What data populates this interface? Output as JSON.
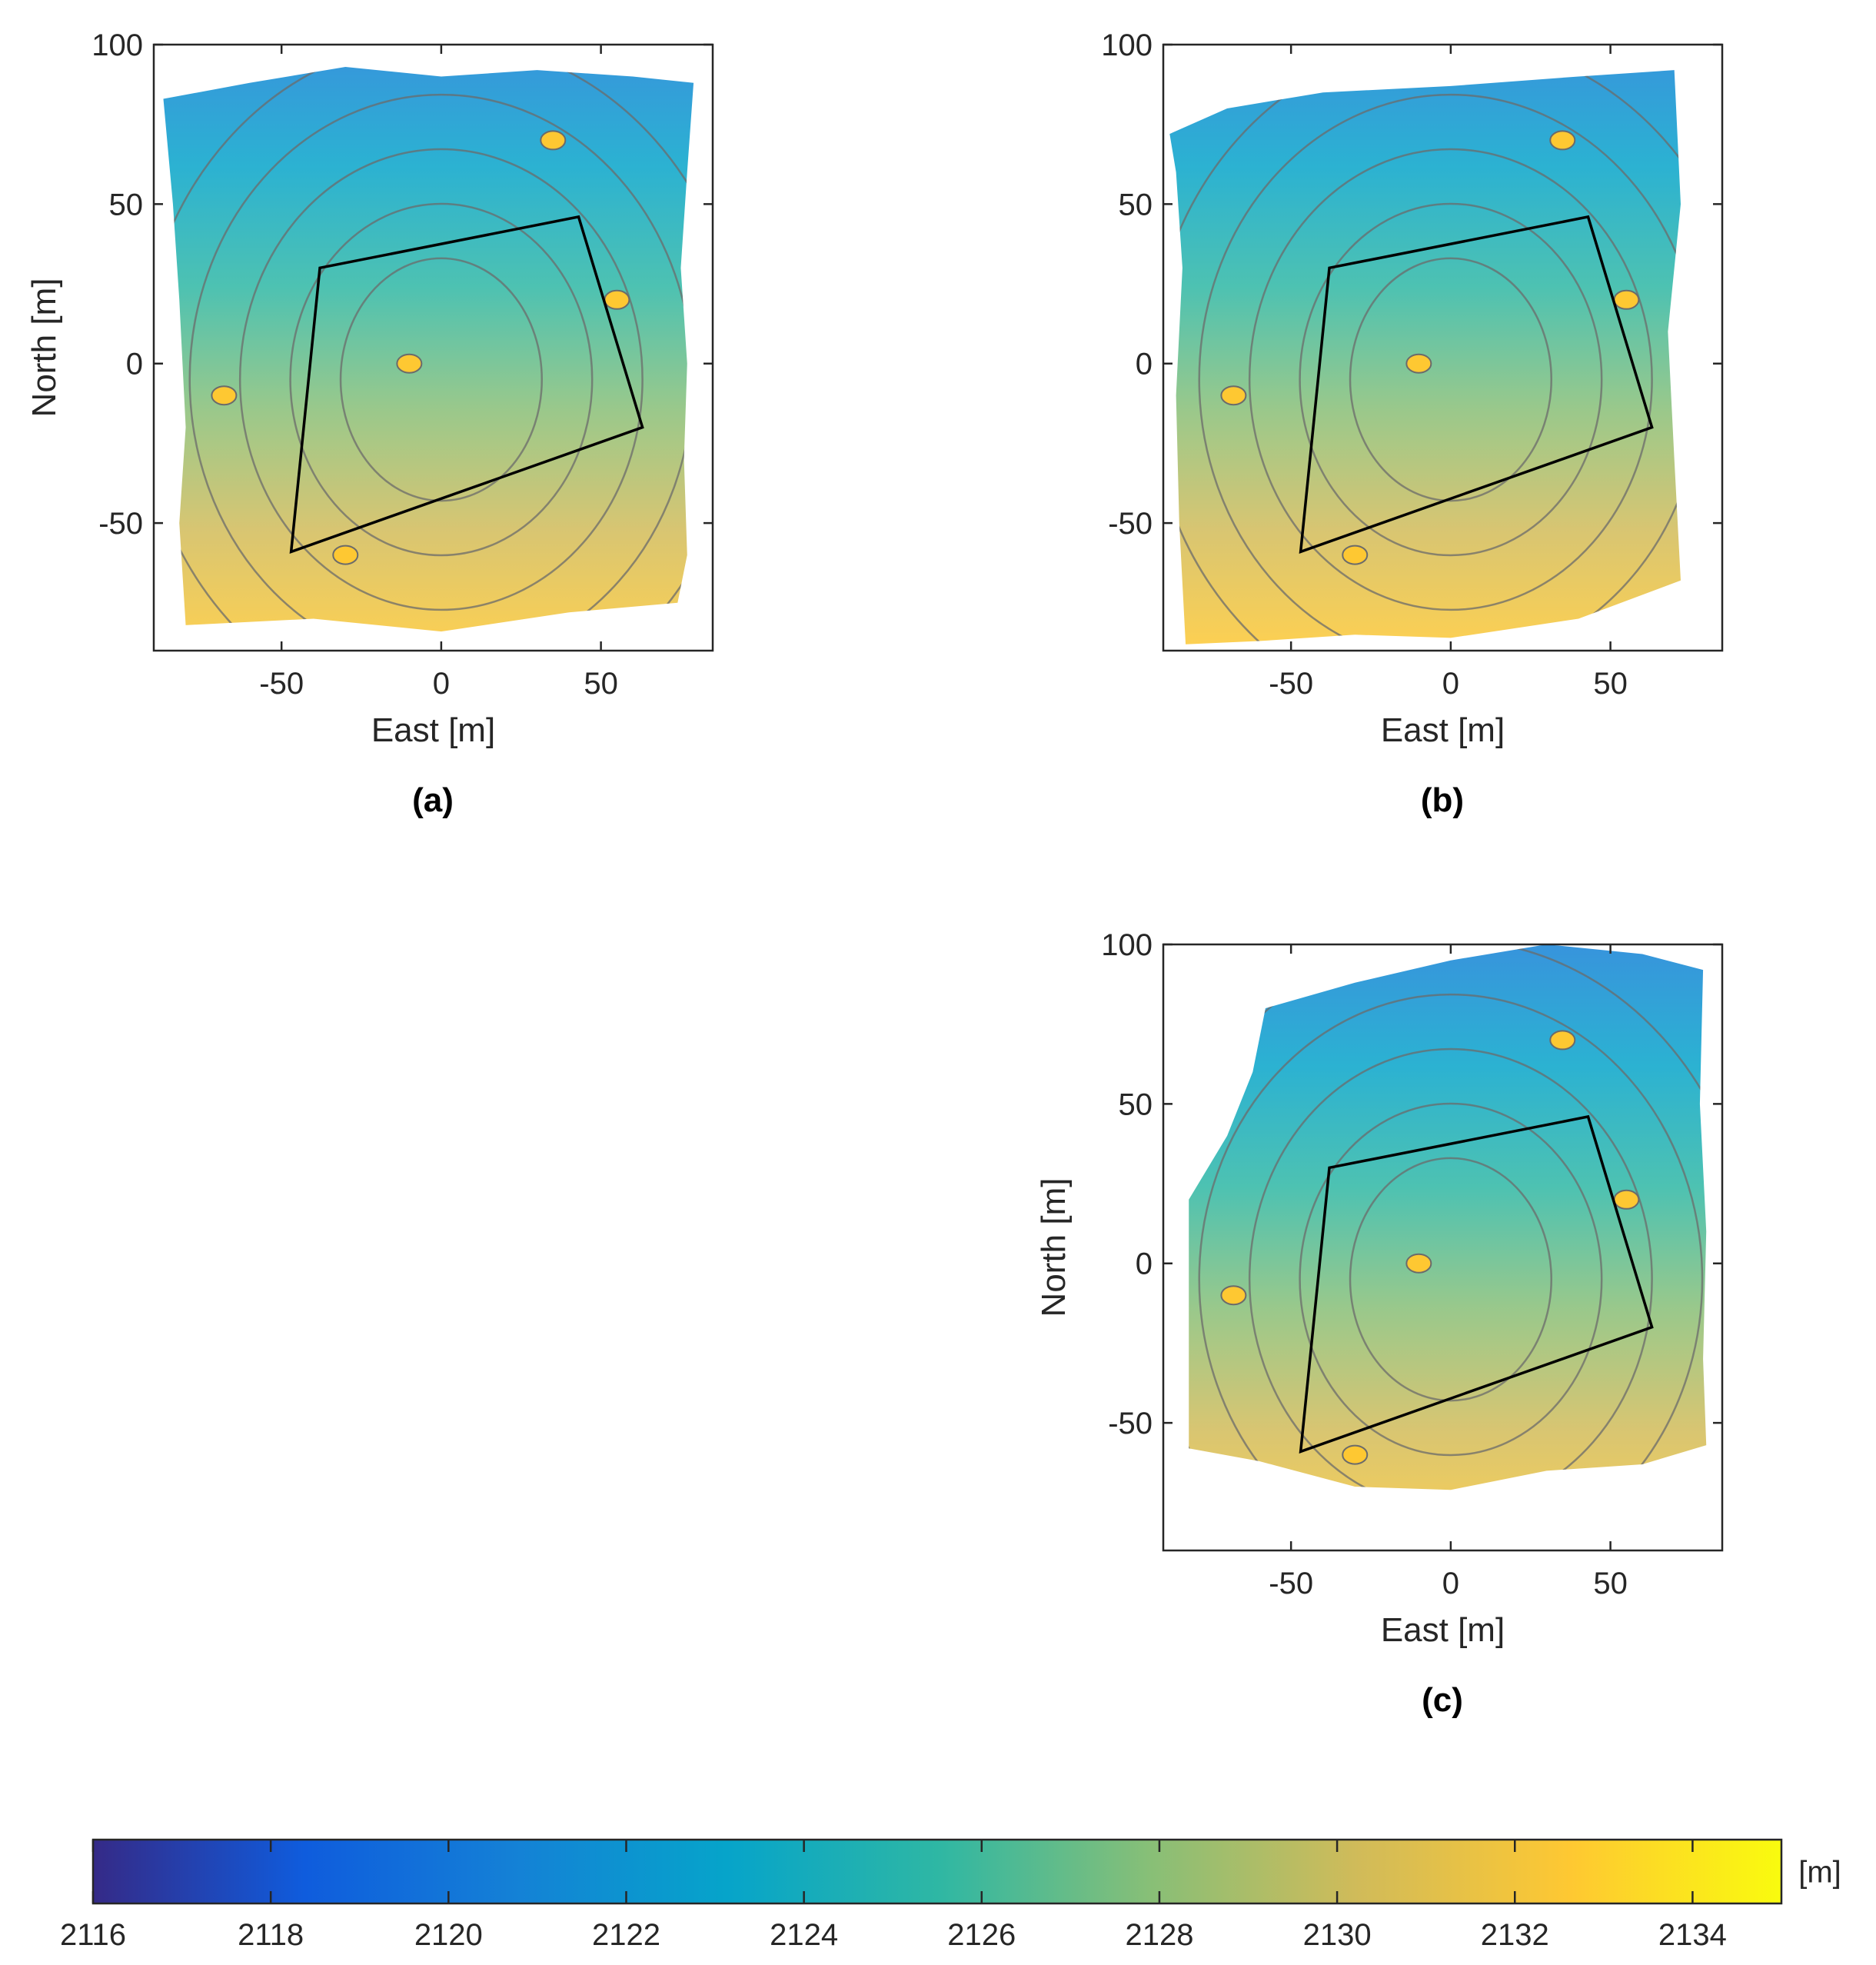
{
  "chart_data": [
    {
      "type": "heatmap",
      "panel": "(a)",
      "xlabel": "East [m]",
      "ylabel": "North [m]",
      "xlim": [
        -90,
        85
      ],
      "ylim": [
        -90,
        100
      ],
      "xticks": [
        -50,
        0,
        50
      ],
      "yticks": [
        -50,
        0,
        50,
        100
      ],
      "xtick_labels": [
        "-50",
        "0",
        "50"
      ],
      "ytick_labels": [
        "-50",
        "0",
        "50",
        "100"
      ],
      "grid": false,
      "outline_points": [
        [
          -38,
          30
        ],
        [
          43,
          46
        ],
        [
          63,
          -20
        ],
        [
          -47,
          -59
        ]
      ],
      "coverage_polygon": [
        [
          -87,
          83
        ],
        [
          -60,
          88
        ],
        [
          -30,
          93
        ],
        [
          0,
          90
        ],
        [
          30,
          92
        ],
        [
          60,
          90
        ],
        [
          79,
          88
        ],
        [
          77,
          60
        ],
        [
          75,
          30
        ],
        [
          77,
          0
        ],
        [
          76,
          -30
        ],
        [
          77,
          -60
        ],
        [
          74,
          -75
        ],
        [
          40,
          -78
        ],
        [
          0,
          -84
        ],
        [
          -40,
          -80
        ],
        [
          -80,
          -82
        ],
        [
          -82,
          -50
        ],
        [
          -80,
          -20
        ],
        [
          -82,
          20
        ],
        [
          -84,
          50
        ]
      ]
    },
    {
      "type": "heatmap",
      "panel": "(b)",
      "xlabel": "East [m]",
      "ylabel": "",
      "xlim": [
        -90,
        85
      ],
      "ylim": [
        -90,
        100
      ],
      "xticks": [
        -50,
        0,
        50
      ],
      "yticks": [
        -50,
        0,
        50,
        100
      ],
      "xtick_labels": [
        "-50",
        "0",
        "50"
      ],
      "ytick_labels": [
        "-50",
        "0",
        "50",
        "100"
      ],
      "grid": false,
      "outline_points": [
        [
          -38,
          30
        ],
        [
          43,
          46
        ],
        [
          63,
          -20
        ],
        [
          -47,
          -59
        ]
      ],
      "coverage_polygon": [
        [
          -88,
          72
        ],
        [
          -70,
          80
        ],
        [
          -40,
          85
        ],
        [
          0,
          87
        ],
        [
          40,
          90
        ],
        [
          70,
          92
        ],
        [
          72,
          50
        ],
        [
          68,
          10
        ],
        [
          70,
          -30
        ],
        [
          72,
          -68
        ],
        [
          40,
          -80
        ],
        [
          0,
          -86
        ],
        [
          -30,
          -85
        ],
        [
          -60,
          -87
        ],
        [
          -83,
          -88
        ],
        [
          -85,
          -50
        ],
        [
          -86,
          -10
        ],
        [
          -84,
          30
        ],
        [
          -86,
          60
        ]
      ]
    },
    {
      "type": "heatmap",
      "panel": "(c)",
      "xlabel": "East [m]",
      "ylabel": "North [m]",
      "xlim": [
        -90,
        85
      ],
      "ylim": [
        -90,
        100
      ],
      "xticks": [
        -50,
        0,
        50
      ],
      "yticks": [
        -50,
        0,
        50,
        100
      ],
      "xtick_labels": [
        "-50",
        "0",
        "50"
      ],
      "ytick_labels": [
        "-50",
        "0",
        "50",
        "100"
      ],
      "grid": false,
      "outline_points": [
        [
          -38,
          30
        ],
        [
          43,
          46
        ],
        [
          63,
          -20
        ],
        [
          -47,
          -59
        ]
      ],
      "coverage_polygon": [
        [
          -58,
          80
        ],
        [
          -30,
          88
        ],
        [
          0,
          95
        ],
        [
          30,
          100
        ],
        [
          60,
          97
        ],
        [
          79,
          92
        ],
        [
          78,
          50
        ],
        [
          80,
          10
        ],
        [
          79,
          -30
        ],
        [
          80,
          -57
        ],
        [
          60,
          -63
        ],
        [
          30,
          -65
        ],
        [
          0,
          -71
        ],
        [
          -30,
          -70
        ],
        [
          -60,
          -62
        ],
        [
          -82,
          -58
        ],
        [
          -82,
          -20
        ],
        [
          -82,
          20
        ],
        [
          -70,
          40
        ],
        [
          -62,
          60
        ]
      ]
    },
    {
      "type": "colorbar",
      "label": "[m]",
      "range": [
        2116,
        2135
      ],
      "ticks": [
        2116,
        2118,
        2120,
        2122,
        2124,
        2126,
        2128,
        2130,
        2132,
        2134
      ],
      "tick_labels": [
        "2116",
        "2118",
        "2120",
        "2122",
        "2124",
        "2126",
        "2128",
        "2130",
        "2132",
        "2134"
      ],
      "colormap": "parula",
      "colormap_stops": [
        "#352a87",
        "#0f5cdd",
        "#1481d6",
        "#06a4ca",
        "#2eb7a4",
        "#87bf77",
        "#d1bb59",
        "#fec832",
        "#f9fb0e"
      ]
    }
  ]
}
